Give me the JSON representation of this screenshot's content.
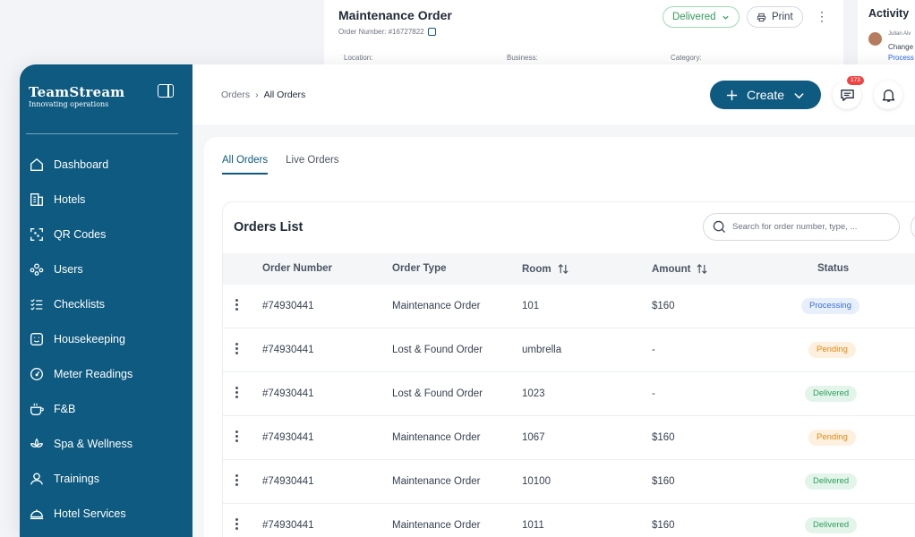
{
  "background_order": {
    "title": "Maintenance Order",
    "order_number": "Order Number: #16727822",
    "status": "Delivered",
    "print_label": "Print",
    "location_label": "Location:",
    "business_label": "Business:",
    "category_label": "Category:"
  },
  "activity": {
    "title": "Activity",
    "user": "Julian Alv",
    "line": "Change",
    "status": "Process"
  },
  "brand": {
    "name": "TeamStream",
    "tagline": "Innovating operations"
  },
  "sidebar": {
    "items": [
      {
        "label": "Dashboard",
        "icon": "home-icon"
      },
      {
        "label": "Hotels",
        "icon": "building-icon"
      },
      {
        "label": "QR Codes",
        "icon": "qr-icon"
      },
      {
        "label": "Users",
        "icon": "users-icon"
      },
      {
        "label": "Checklists",
        "icon": "checklist-icon"
      },
      {
        "label": "Housekeeping",
        "icon": "housekeeping-icon"
      },
      {
        "label": "Meter Readings",
        "icon": "meter-icon"
      },
      {
        "label": "F&B",
        "icon": "food-icon"
      },
      {
        "label": "Spa & Wellness",
        "icon": "spa-icon"
      },
      {
        "label": "Trainings",
        "icon": "training-icon"
      },
      {
        "label": "Hotel Services",
        "icon": "service-bell-icon"
      }
    ]
  },
  "breadcrumb": {
    "parent": "Orders",
    "current": "All Orders"
  },
  "header": {
    "create_label": "Create",
    "messages_badge": "173"
  },
  "tabs": {
    "all": "All Orders",
    "live": "Live Orders"
  },
  "list": {
    "title": "Orders List",
    "search_placeholder": "Search for order number, type, ...",
    "columns": {
      "order_number": "Order Number",
      "order_type": "Order Type",
      "room": "Room",
      "amount": "Amount",
      "status": "Status"
    },
    "rows": [
      {
        "order_number": "#74930441",
        "order_type": "Maintenance Order",
        "room": "101",
        "amount": "$160",
        "status": "Processing"
      },
      {
        "order_number": "#74930441",
        "order_type": "Lost & Found Order",
        "room": "umbrella",
        "amount": "-",
        "status": "Pending"
      },
      {
        "order_number": "#74930441",
        "order_type": "Lost & Found Order",
        "room": "1023",
        "amount": "-",
        "status": "Delivered"
      },
      {
        "order_number": "#74930441",
        "order_type": "Maintenance Order",
        "room": "1067",
        "amount": "$160",
        "status": "Pending"
      },
      {
        "order_number": "#74930441",
        "order_type": "Maintenance Order",
        "room": "10100",
        "amount": "$160",
        "status": "Delivered"
      },
      {
        "order_number": "#74930441",
        "order_type": "Maintenance Order",
        "room": "1011",
        "amount": "$160",
        "status": "Delivered"
      }
    ]
  },
  "colors": {
    "brand": "#0e5a80",
    "processing": "#3b6fd6",
    "pending": "#e08a14",
    "delivered": "#2e9d5c"
  }
}
